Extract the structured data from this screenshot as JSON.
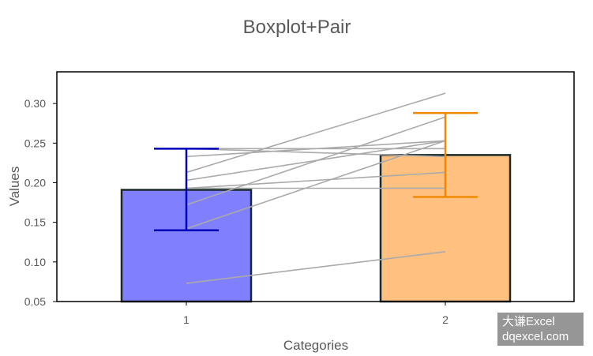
{
  "chart_data": {
    "type": "bar",
    "title": "Boxplot+Pair",
    "xlabel": "Categories",
    "ylabel": "Values",
    "categories": [
      "1",
      "2"
    ],
    "values": [
      0.191,
      0.235
    ],
    "error_low": [
      0.14,
      0.182
    ],
    "error_high": [
      0.243,
      0.288
    ],
    "bar_fill": [
      "#8080ff",
      "#ffc080"
    ],
    "error_color": [
      "#0000bb",
      "#f08800"
    ],
    "bar_edge": "#1a2a2a",
    "pair_line_color": "#aaaaaa",
    "pairs": [
      [
        0.073,
        0.113
      ],
      [
        0.142,
        0.253
      ],
      [
        0.172,
        0.283
      ],
      [
        0.193,
        0.213
      ],
      [
        0.193,
        0.193
      ],
      [
        0.203,
        0.253
      ],
      [
        0.213,
        0.313
      ],
      [
        0.233,
        0.253
      ],
      [
        0.243,
        0.233
      ],
      [
        0.243,
        0.243
      ]
    ],
    "ylim": [
      0.05,
      0.34
    ],
    "yticks": [
      "0.05",
      "0.10",
      "0.15",
      "0.20",
      "0.25",
      "0.30"
    ],
    "grid": false,
    "legend": "none"
  },
  "watermark": {
    "line1": "大谦Excel",
    "line2": "dqexcel.com"
  }
}
